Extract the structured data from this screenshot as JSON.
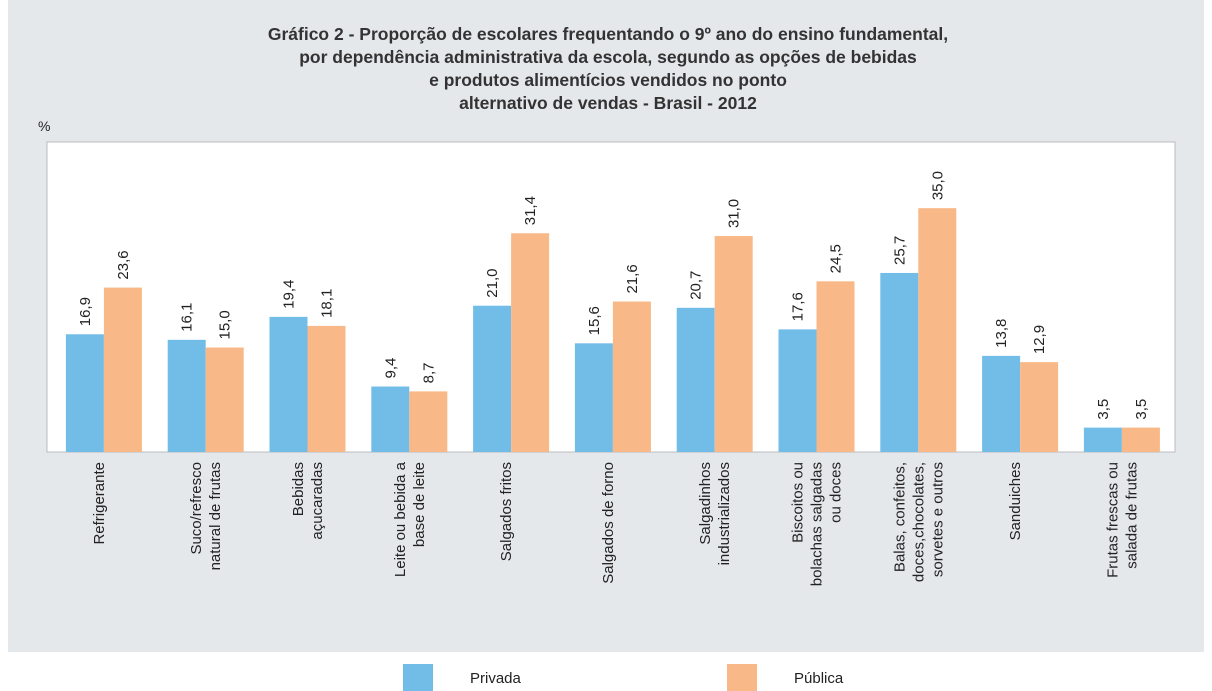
{
  "chart_data": {
    "type": "bar",
    "title": "Gráfico 2 - Proporção de escolares frequentando o 9º ano do ensino fundamental,\npor dependência administrativa da escola, segundo as opções de bebidas\ne produtos alimentícios vendidos no ponto\nalternativo de vendas - Brasil - 2012",
    "y_label": "%",
    "categories": [
      "Refrigerante",
      "Suco/refresco\nnatural de frutas",
      "Bebidas\naçucaradas",
      "Leite ou bebida a\nbase de leite",
      "Salgados fritos",
      "Salgados de forno",
      "Salgadinhos\nindustrializados",
      "Biscoitos ou\nbolachas salgadas\nou doces",
      "Balas, confeitos,\ndoces,chocolates,\nsorvetes e outros",
      "Sanduiches",
      "Frutas frescas ou\nsalada de frutas"
    ],
    "series": [
      {
        "name": "Privada",
        "color": "#72bde8",
        "values": [
          16.9,
          16.1,
          19.4,
          9.4,
          21.0,
          15.6,
          20.7,
          17.6,
          25.7,
          13.8,
          3.5
        ],
        "value_labels": [
          "16,9",
          "16,1",
          "19,4",
          "9,4",
          "21,0",
          "15,6",
          "20,7",
          "17,6",
          "25,7",
          "13,8",
          "3,5"
        ]
      },
      {
        "name": "Pública",
        "color": "#f8b887",
        "values": [
          23.6,
          15.0,
          18.1,
          8.7,
          31.4,
          21.6,
          31.0,
          24.5,
          35.0,
          12.9,
          3.5
        ],
        "value_labels": [
          "23,6",
          "15,0",
          "18,1",
          "8,7",
          "31,4",
          "21,6",
          "31,0",
          "24,5",
          "35,0",
          "12,9",
          "3,5"
        ]
      }
    ],
    "ylim": [
      0,
      44.5
    ]
  }
}
